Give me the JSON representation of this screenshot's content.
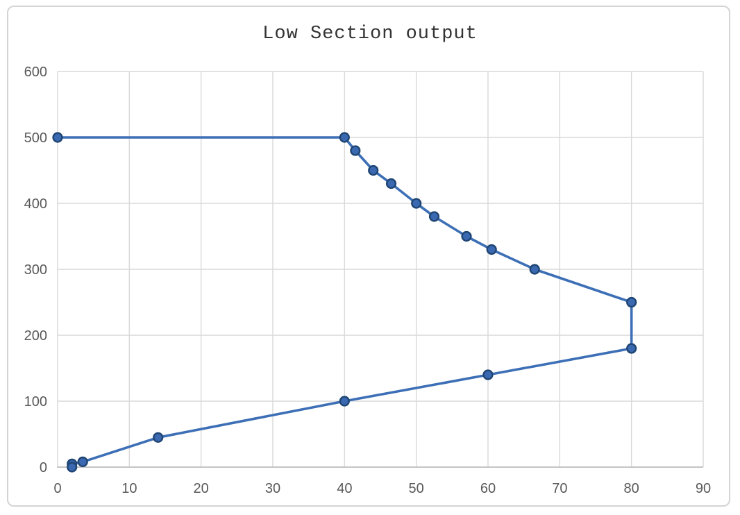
{
  "chart_data": {
    "type": "line",
    "title": "Low Section output",
    "xlabel": "",
    "ylabel": "",
    "xlim": [
      0,
      90
    ],
    "ylim": [
      0,
      600
    ],
    "x_ticks": [
      0,
      10,
      20,
      30,
      40,
      50,
      60,
      70,
      80,
      90
    ],
    "y_ticks": [
      0,
      100,
      200,
      300,
      400,
      500,
      600
    ],
    "grid": true,
    "legend": false,
    "series": [
      {
        "name": "Low Section output",
        "points": [
          [
            0,
            500
          ],
          [
            40,
            500
          ],
          [
            41.5,
            480
          ],
          [
            44,
            450
          ],
          [
            46.5,
            430
          ],
          [
            50,
            400
          ],
          [
            52.5,
            380
          ],
          [
            57,
            350
          ],
          [
            60.5,
            330
          ],
          [
            66.5,
            300
          ],
          [
            80,
            250
          ],
          [
            80,
            180
          ],
          [
            60,
            140
          ],
          [
            40,
            100
          ],
          [
            14,
            45
          ],
          [
            3.5,
            8
          ],
          [
            2,
            5
          ],
          [
            2,
            0
          ]
        ]
      }
    ],
    "colors": {
      "line": "#3d6fb6",
      "marker_fill": "#3a69b1",
      "marker_stroke": "#1f4573",
      "grid": "#d9d9d9",
      "axis": "#bfbfbf",
      "tick_label": "#595959",
      "title": "#333333",
      "chart_border": "#d4d4d4",
      "background": "#ffffff"
    }
  }
}
